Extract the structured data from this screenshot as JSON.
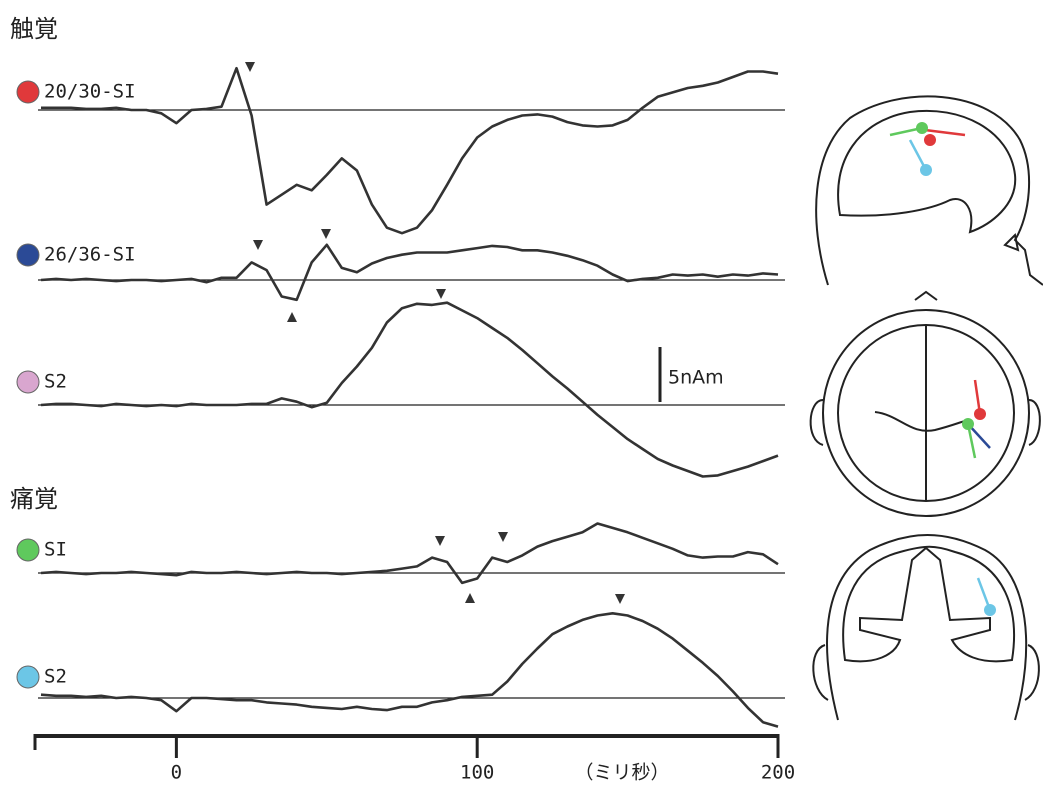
{
  "chart_data": {
    "type": "line",
    "group_labels": [
      "触覚",
      "痛覚"
    ],
    "x": [
      -45,
      -40,
      -35,
      -30,
      -25,
      -20,
      -15,
      -10,
      -5,
      0,
      5,
      10,
      15,
      20,
      25,
      30,
      35,
      40,
      45,
      50,
      55,
      60,
      65,
      70,
      75,
      80,
      85,
      90,
      95,
      100,
      105,
      110,
      115,
      120,
      125,
      130,
      135,
      140,
      145,
      150,
      155,
      160,
      165,
      170,
      175,
      180,
      185,
      190,
      195,
      200
    ],
    "xlim": [
      -47,
      200
    ],
    "xticks": [
      0,
      100,
      200
    ],
    "xlabel": "（ミリ秒）",
    "scale_bar": {
      "value": 5,
      "label": "5nAm"
    },
    "series": [
      {
        "name": "20/30-SI",
        "color": "#e0393b",
        "values": [
          0.2,
          0.2,
          0.2,
          0.1,
          0.1,
          0.2,
          0,
          0,
          -0.3,
          -1.2,
          0,
          0.1,
          0.3,
          3.8,
          -0.5,
          -8.6,
          -7.7,
          -6.8,
          -7.3,
          -5.9,
          -4.4,
          -5.5,
          -8.6,
          -10.7,
          -11.2,
          -10.7,
          -9.1,
          -6.8,
          -4.4,
          -2.5,
          -1.5,
          -0.9,
          -0.5,
          -0.4,
          -0.6,
          -1.1,
          -1.4,
          -1.5,
          -1.4,
          -0.9,
          0.2,
          1.2,
          1.6,
          2.0,
          2.2,
          2.5,
          3.0,
          3.5,
          3.5,
          3.3
        ]
      },
      {
        "name": "26/36-SI",
        "color": "#2b4a96",
        "values": [
          0,
          0.1,
          0,
          0.1,
          0,
          -0.1,
          0,
          0,
          -0.1,
          0,
          0.1,
          -0.2,
          0.2,
          0.2,
          1.6,
          0.9,
          -1.5,
          -1.8,
          1.6,
          3.2,
          1.1,
          0.7,
          1.5,
          2.0,
          2.3,
          2.5,
          2.5,
          2.5,
          2.7,
          2.9,
          3.1,
          3.0,
          2.7,
          2.7,
          2.5,
          2.2,
          1.8,
          1.3,
          0.5,
          -0.1,
          0.1,
          0.2,
          0.5,
          0.4,
          0.5,
          0.3,
          0.5,
          0.4,
          0.6,
          0.5
        ]
      },
      {
        "name": "S2",
        "color": "#d9a6cf",
        "values": [
          0,
          0.1,
          0.1,
          0,
          -0.1,
          0.1,
          0,
          -0.1,
          0,
          -0.1,
          0.1,
          0,
          0,
          0,
          0.1,
          0.1,
          0.6,
          0.3,
          -0.2,
          0.2,
          2.0,
          3.5,
          5.2,
          7.5,
          8.8,
          9.2,
          9.1,
          9.3,
          8.6,
          7.9,
          7.0,
          6.1,
          5.0,
          3.8,
          2.6,
          1.5,
          0.3,
          -0.9,
          -2.0,
          -3.1,
          -4.0,
          -4.9,
          -5.5,
          -6.0,
          -6.5,
          -6.4,
          -6.0,
          -5.6,
          -5.1,
          -4.6
        ]
      },
      {
        "name": "SI",
        "color": "#5fc95d",
        "values": [
          0,
          0.1,
          0,
          -0.1,
          0,
          0,
          0.1,
          0,
          -0.1,
          -0.2,
          0.1,
          0,
          0,
          0.1,
          0,
          -0.1,
          0,
          0.1,
          0,
          0,
          -0.1,
          0,
          0.1,
          0.2,
          0.4,
          0.6,
          1.4,
          1.0,
          -0.9,
          -0.5,
          1.4,
          1.0,
          1.6,
          2.4,
          2.9,
          3.3,
          3.7,
          4.5,
          4.1,
          3.7,
          3.2,
          2.7,
          2.2,
          1.6,
          1.4,
          1.5,
          1.5,
          1.9,
          1.7,
          0.8
        ]
      },
      {
        "name": "S2",
        "color": "#6cc6e6",
        "values": [
          0.3,
          0.2,
          0.2,
          0.1,
          0.2,
          0,
          0.1,
          0,
          -0.2,
          -1.2,
          0,
          0,
          -0.1,
          -0.2,
          -0.2,
          -0.4,
          -0.5,
          -0.6,
          -0.8,
          -0.9,
          -1.0,
          -0.8,
          -1.0,
          -1.1,
          -0.8,
          -0.8,
          -0.4,
          -0.2,
          0.1,
          0.2,
          0.3,
          1.5,
          3.1,
          4.5,
          5.8,
          6.5,
          7.1,
          7.5,
          7.7,
          7.5,
          7.0,
          6.3,
          5.4,
          4.3,
          3.2,
          2.0,
          0.6,
          -0.9,
          -2.2,
          -2.6
        ]
      }
    ]
  }
}
